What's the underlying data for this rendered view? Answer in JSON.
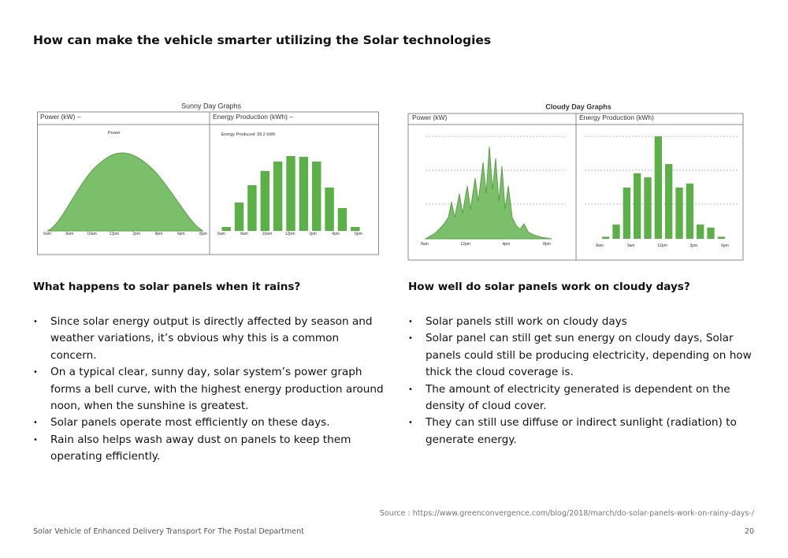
{
  "header": {
    "title": "How can make the vehicle smarter utilizing the Solar technologies"
  },
  "figures": [
    {
      "title": "Sunny Day Graphs",
      "power_label": "Power (kW) –",
      "energy_label": "Energy Production (kWh) –",
      "power_annotation": "Power",
      "energy_annotation": "Energy Produced: 39.2 kWh",
      "power_ticks": [
        "6am",
        "8am",
        "10am",
        "12pm",
        "2pm",
        "4pm",
        "6pm",
        "8pm"
      ],
      "energy_ticks": [
        "6am",
        "8am",
        "10am",
        "12pm",
        "2pm",
        "4pm",
        "6pm"
      ],
      "energy_values": [
        5,
        36,
        58,
        76,
        88,
        95,
        94,
        88,
        55,
        29,
        5
      ],
      "ylim": [
        0,
        100
      ]
    },
    {
      "title": "Cloudy Day Graphs",
      "power_label": "Power (kW)",
      "energy_label": "Energy Production (kWh)",
      "power_ticks": [
        "8am",
        "12pm",
        "4pm",
        "8pm"
      ],
      "energy_ticks": [
        "8am",
        "9am",
        "12pm",
        "3pm",
        "6pm"
      ],
      "energy_values": [
        2,
        14,
        50,
        64,
        60,
        100,
        73,
        50,
        54,
        14,
        11,
        2
      ],
      "ylim": [
        0,
        100
      ]
    }
  ],
  "sections": [
    {
      "heading": "What happens to solar panels when it rains?",
      "items": [
        "Since solar energy output is directly affected by season and weather variations, it’s obvious why this is a common concern.",
        "On a typical clear, sunny day, solar system’s power graph forms a bell curve, with the highest energy production around noon, when the sunshine is greatest.",
        "Solar panels operate most efficiently on these days.",
        "Rain also helps wash away dust on panels to keep them operating efficiently."
      ]
    },
    {
      "heading": "How well do solar panels work on cloudy days?",
      "items": [
        "Solar panels still work on cloudy days",
        "Solar panel can still get sun energy on cloudy days, Solar panels could still be producing electricity, depending on how thick the cloud coverage is.",
        "The amount of electricity generated is dependent on the density of cloud cover.",
        "They can still use diffuse or indirect sunlight (radiation) to generate energy."
      ]
    }
  ],
  "source": "Source : https://www.greenconvergence.com/blog/2018/march/do-solar-panels-work-on-rainy-days-/",
  "footer": {
    "text": "Solar Vehicle of Enhanced Delivery Transport For The Postal Department",
    "page": "20"
  }
}
